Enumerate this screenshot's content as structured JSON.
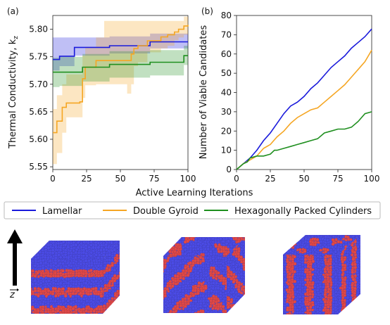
{
  "figure": {
    "xlabel_shared": "Active Learning Iterations",
    "z_axis_label": "z",
    "legend": [
      {
        "label": "Lamellar",
        "color": "#1a1adb"
      },
      {
        "label": "Double Gyroid",
        "color": "#f5a623"
      },
      {
        "label": "Hexagonally Packed Cylinders",
        "color": "#1f8f1f"
      }
    ],
    "structures": [
      "Lamellar",
      "Double Gyroid",
      "Hexagonally Packed Cylinders"
    ],
    "bead_colors": {
      "blue": "#4b4be6",
      "red": "#e04848"
    }
  },
  "chart_data": [
    {
      "panel": "(a)",
      "type": "line",
      "ylabel": "Thermal Conductivity, k",
      "ylabel_sub": "z",
      "xlim": [
        0,
        100
      ],
      "ylim": [
        5.545,
        5.825
      ],
      "xticks": [
        "0",
        "25",
        "50",
        "75",
        "100"
      ],
      "yticks": [
        "5.55",
        "5.60",
        "5.65",
        "5.70",
        "5.75",
        "5.80"
      ],
      "ytick_values": [
        5.55,
        5.6,
        5.65,
        5.7,
        5.75,
        5.8
      ],
      "series": [
        {
          "name": "Lamellar",
          "color": "#1a1adb",
          "x": [
            0,
            2,
            5,
            8,
            15,
            16,
            40,
            42,
            70,
            72,
            100
          ],
          "y": [
            5.745,
            5.745,
            5.751,
            5.751,
            5.751,
            5.767,
            5.767,
            5.77,
            5.77,
            5.777,
            5.777
          ],
          "lower": [
            5.725,
            5.725,
            5.733,
            5.733,
            5.733,
            5.752,
            5.752,
            5.756,
            5.756,
            5.765,
            5.765
          ],
          "upper": [
            5.785,
            5.785,
            5.785,
            5.785,
            5.785,
            5.785,
            5.785,
            5.787,
            5.787,
            5.792,
            5.792
          ]
        },
        {
          "name": "Double Gyroid",
          "color": "#f5a623",
          "x": [
            0,
            2,
            3,
            7,
            10,
            13,
            20,
            22,
            24,
            29,
            32,
            38,
            55,
            58,
            60,
            63,
            70,
            75,
            80,
            85,
            90,
            93,
            97,
            100
          ],
          "y": [
            5.612,
            5.612,
            5.633,
            5.658,
            5.666,
            5.666,
            5.668,
            5.71,
            5.731,
            5.731,
            5.743,
            5.743,
            5.743,
            5.755,
            5.765,
            5.77,
            5.779,
            5.779,
            5.786,
            5.79,
            5.795,
            5.8,
            5.806,
            5.808
          ],
          "lower": [
            5.555,
            5.555,
            5.575,
            5.612,
            5.64,
            5.64,
            5.64,
            5.675,
            5.698,
            5.698,
            5.7,
            5.7,
            5.683,
            5.7,
            5.733,
            5.74,
            5.758,
            5.758,
            5.765,
            5.77,
            5.78,
            5.785,
            5.79,
            5.793
          ],
          "upper": [
            5.655,
            5.655,
            5.68,
            5.7,
            5.718,
            5.718,
            5.718,
            5.752,
            5.768,
            5.768,
            5.785,
            5.815,
            5.815,
            5.815,
            5.815,
            5.815,
            5.815,
            5.815,
            5.815,
            5.815,
            5.815,
            5.815,
            5.823,
            5.823
          ]
        },
        {
          "name": "Hexagonally Packed Cylinders",
          "color": "#1f8f1f",
          "x": [
            0,
            4,
            5,
            20,
            22,
            40,
            42,
            70,
            72,
            95,
            97,
            100
          ],
          "y": [
            5.722,
            5.722,
            5.722,
            5.722,
            5.731,
            5.731,
            5.736,
            5.736,
            5.74,
            5.74,
            5.752,
            5.752
          ],
          "lower": [
            5.695,
            5.695,
            5.697,
            5.697,
            5.705,
            5.705,
            5.712,
            5.712,
            5.716,
            5.716,
            5.735,
            5.735
          ],
          "upper": [
            5.748,
            5.748,
            5.75,
            5.75,
            5.755,
            5.755,
            5.76,
            5.76,
            5.762,
            5.762,
            5.77,
            5.77
          ]
        }
      ]
    },
    {
      "panel": "(b)",
      "type": "line",
      "ylabel": "Number of Viable Candidates",
      "xlim": [
        0,
        100
      ],
      "ylim": [
        0,
        80
      ],
      "xticks": [
        "0",
        "25",
        "50",
        "75",
        "100"
      ],
      "yticks": [
        "0",
        "10",
        "20",
        "30",
        "40",
        "50",
        "60",
        "70",
        "80"
      ],
      "ytick_values": [
        0,
        10,
        20,
        30,
        40,
        50,
        60,
        70,
        80
      ],
      "series": [
        {
          "name": "Lamellar",
          "color": "#1a1adb",
          "x": [
            0,
            5,
            10,
            15,
            20,
            25,
            30,
            35,
            40,
            45,
            50,
            55,
            60,
            65,
            70,
            75,
            80,
            85,
            90,
            95,
            100
          ],
          "y": [
            0,
            3,
            6,
            10,
            15,
            19,
            24,
            29,
            33,
            35,
            38,
            42,
            45,
            49,
            53,
            56,
            59,
            63,
            66,
            69,
            73
          ]
        },
        {
          "name": "Double Gyroid",
          "color": "#f5a623",
          "x": [
            0,
            5,
            10,
            15,
            20,
            25,
            30,
            35,
            40,
            45,
            50,
            55,
            60,
            65,
            70,
            75,
            80,
            85,
            90,
            95,
            100
          ],
          "y": [
            0,
            3,
            5,
            7,
            11,
            13,
            17,
            20,
            24,
            27,
            29,
            31,
            32,
            35,
            38,
            41,
            44,
            48,
            52,
            56,
            62
          ]
        },
        {
          "name": "Hexagonally Packed Cylinders",
          "color": "#1f8f1f",
          "x": [
            0,
            5,
            8,
            10,
            15,
            20,
            25,
            28,
            30,
            35,
            40,
            45,
            50,
            55,
            60,
            65,
            70,
            75,
            80,
            85,
            90,
            95,
            100
          ],
          "y": [
            0,
            3,
            4,
            6,
            7,
            7,
            8,
            10,
            10,
            11,
            12,
            13,
            14,
            15,
            16,
            19,
            20,
            21,
            21,
            22,
            25,
            29,
            30
          ]
        }
      ]
    }
  ]
}
